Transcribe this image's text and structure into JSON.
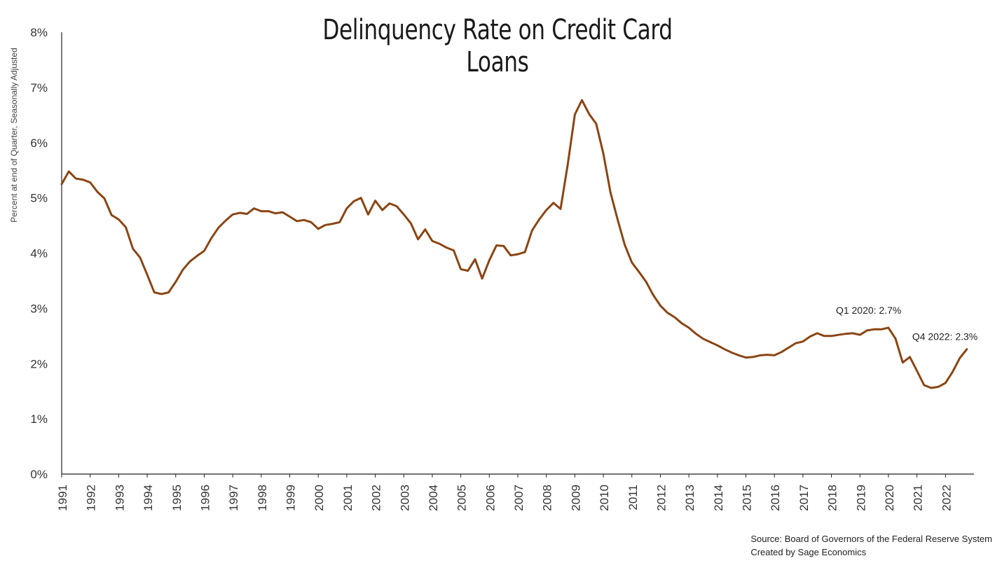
{
  "chart_data": {
    "type": "line",
    "title": "Delinquency Rate on Credit Card Loans",
    "ylabel": "Percent at end of Quarter, Seasonally Adjusted",
    "xlabel": "",
    "ylim": [
      0,
      8
    ],
    "y_ticks": [
      "0%",
      "1%",
      "2%",
      "3%",
      "4%",
      "5%",
      "6%",
      "7%",
      "8%"
    ],
    "x_ticks": [
      "1991",
      "1992",
      "1993",
      "1994",
      "1995",
      "1996",
      "1997",
      "1998",
      "1999",
      "2000",
      "2001",
      "2002",
      "2003",
      "2004",
      "2005",
      "2006",
      "2007",
      "2008",
      "2009",
      "2010",
      "2011",
      "2012",
      "2013",
      "2014",
      "2015",
      "2016",
      "2017",
      "2018",
      "2019",
      "2020",
      "2021",
      "2022"
    ],
    "grid": false,
    "line_color": "#8B4513",
    "series": [
      {
        "x": [
          "1991 Q1",
          "1991 Q2",
          "1991 Q3",
          "1991 Q4",
          "1992 Q1",
          "1992 Q2",
          "1992 Q3",
          "1992 Q4",
          "1993 Q1",
          "1993 Q2",
          "1993 Q3",
          "1993 Q4",
          "1994 Q1",
          "1994 Q2",
          "1994 Q3",
          "1994 Q4",
          "1995 Q1",
          "1995 Q2",
          "1995 Q3",
          "1995 Q4",
          "1996 Q1",
          "1996 Q2",
          "1996 Q3",
          "1996 Q4",
          "1997 Q1",
          "1997 Q2",
          "1997 Q3",
          "1997 Q4",
          "1998 Q1",
          "1998 Q2",
          "1998 Q3",
          "1998 Q4",
          "1999 Q1",
          "1999 Q2",
          "1999 Q3",
          "1999 Q4",
          "2000 Q1",
          "2000 Q2",
          "2000 Q3",
          "2000 Q4",
          "2001 Q1",
          "2001 Q2",
          "2001 Q3",
          "2001 Q4",
          "2002 Q1",
          "2002 Q2",
          "2002 Q3",
          "2002 Q4",
          "2003 Q1",
          "2003 Q2",
          "2003 Q3",
          "2003 Q4",
          "2004 Q1",
          "2004 Q2",
          "2004 Q3",
          "2004 Q4",
          "2005 Q1",
          "2005 Q2",
          "2005 Q3",
          "2005 Q4",
          "2006 Q1",
          "2006 Q2",
          "2006 Q3",
          "2006 Q4",
          "2007 Q1",
          "2007 Q2",
          "2007 Q3",
          "2007 Q4",
          "2008 Q1",
          "2008 Q2",
          "2008 Q3",
          "2008 Q4",
          "2009 Q1",
          "2009 Q2",
          "2009 Q3",
          "2009 Q4",
          "2010 Q1",
          "2010 Q2",
          "2010 Q3",
          "2010 Q4",
          "2011 Q1",
          "2011 Q2",
          "2011 Q3",
          "2011 Q4",
          "2012 Q1",
          "2012 Q2",
          "2012 Q3",
          "2012 Q4",
          "2013 Q1",
          "2013 Q2",
          "2013 Q3",
          "2013 Q4",
          "2014 Q1",
          "2014 Q2",
          "2014 Q3",
          "2014 Q4",
          "2015 Q1",
          "2015 Q2",
          "2015 Q3",
          "2015 Q4",
          "2016 Q1",
          "2016 Q2",
          "2016 Q3",
          "2016 Q4",
          "2017 Q1",
          "2017 Q2",
          "2017 Q3",
          "2017 Q4",
          "2018 Q1",
          "2018 Q2",
          "2018 Q3",
          "2018 Q4",
          "2019 Q1",
          "2019 Q2",
          "2019 Q3",
          "2019 Q4",
          "2020 Q1",
          "2020 Q2",
          "2020 Q3",
          "2020 Q4",
          "2021 Q1",
          "2021 Q2",
          "2021 Q3",
          "2021 Q4",
          "2022 Q1",
          "2022 Q2",
          "2022 Q3",
          "2022 Q4"
        ],
        "values": [
          5.25,
          5.48,
          5.35,
          5.33,
          5.28,
          5.11,
          4.99,
          4.69,
          4.61,
          4.47,
          4.08,
          3.92,
          3.61,
          3.29,
          3.26,
          3.29,
          3.48,
          3.7,
          3.85,
          3.95,
          4.04,
          4.27,
          4.46,
          4.59,
          4.7,
          4.73,
          4.71,
          4.81,
          4.76,
          4.76,
          4.72,
          4.74,
          4.66,
          4.58,
          4.6,
          4.56,
          4.44,
          4.51,
          4.53,
          4.56,
          4.81,
          4.94,
          5.0,
          4.7,
          4.95,
          4.78,
          4.9,
          4.85,
          4.7,
          4.54,
          4.25,
          4.43,
          4.22,
          4.17,
          4.1,
          4.05,
          3.71,
          3.68,
          3.89,
          3.54,
          3.87,
          4.14,
          4.13,
          3.96,
          3.98,
          4.02,
          4.41,
          4.61,
          4.78,
          4.91,
          4.8,
          5.6,
          6.51,
          6.77,
          6.52,
          6.34,
          5.8,
          5.1,
          4.61,
          4.15,
          3.83,
          3.66,
          3.48,
          3.24,
          3.05,
          2.92,
          2.84,
          2.73,
          2.65,
          2.54,
          2.45,
          2.39,
          2.33,
          2.26,
          2.2,
          2.15,
          2.11,
          2.12,
          2.15,
          2.16,
          2.15,
          2.21,
          2.29,
          2.37,
          2.4,
          2.49,
          2.55,
          2.5,
          2.5,
          2.52,
          2.54,
          2.55,
          2.52,
          2.6,
          2.62,
          2.62,
          2.65,
          2.45,
          2.02,
          2.12,
          1.87,
          1.61,
          1.56,
          1.58,
          1.65,
          1.85,
          2.1,
          2.26
        ]
      }
    ],
    "annotations": [
      {
        "text": "Q1 2020: 2.7%",
        "x": "2020 Q1",
        "y": 2.65
      },
      {
        "text": "Q4 2022: 2.3%",
        "x": "2022 Q4",
        "y": 2.26
      }
    ]
  },
  "source": {
    "line1": "Source: Board of Governors of the Federal Reserve System",
    "line2": "Created by Sage Economics"
  }
}
